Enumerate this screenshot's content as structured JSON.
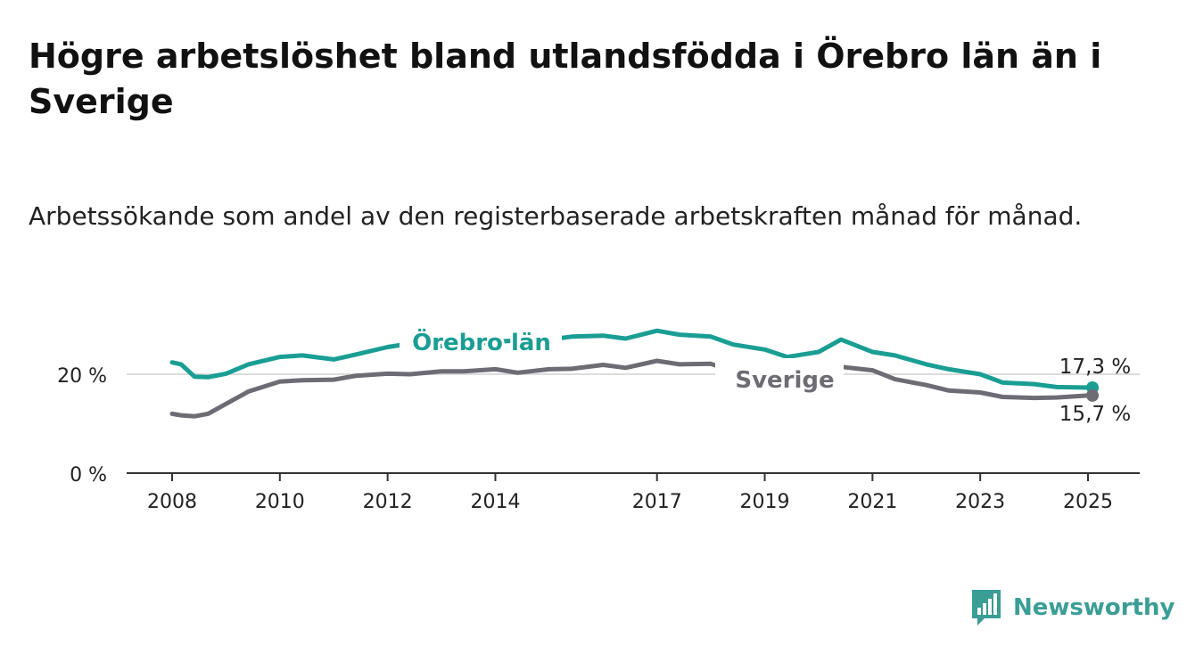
{
  "chart_data": {
    "type": "line",
    "title": "Högre arbetslöshet bland utlandsfödda i Örebro län än i Sverige",
    "subtitle": "Arbetssökande som andel av den registerbaserade arbetskraften månad för månad.",
    "xlabel": "",
    "ylabel": "",
    "x_ticks": [
      "2008",
      "2010",
      "2012",
      "2014",
      "2017",
      "2019",
      "2021",
      "2023",
      "2025"
    ],
    "y_ticks": [
      "0 %",
      "20 %"
    ],
    "y_tick_values": [
      0,
      20
    ],
    "ylim": [
      0,
      31
    ],
    "grid": "horizontal",
    "x": [
      "2008-01",
      "2008-03",
      "2008-06",
      "2008-09",
      "2009-01",
      "2009-06",
      "2010-01",
      "2010-06",
      "2011-01",
      "2011-06",
      "2012-01",
      "2012-06",
      "2013-01",
      "2013-06",
      "2014-01",
      "2014-06",
      "2015-01",
      "2015-06",
      "2016-01",
      "2016-06",
      "2017-01",
      "2017-06",
      "2018-01",
      "2018-06",
      "2019-01",
      "2019-06",
      "2020-01",
      "2020-06",
      "2021-01",
      "2021-06",
      "2022-01",
      "2022-06",
      "2023-01",
      "2023-06",
      "2024-01",
      "2024-06",
      "2025-01",
      "2025-02"
    ],
    "series": [
      {
        "name": "Örebro län",
        "color": "#1a9e94",
        "values": [
          22.4,
          22.0,
          19.5,
          19.4,
          20.1,
          22.0,
          23.5,
          23.8,
          23.0,
          24.0,
          25.5,
          26.2,
          25.7,
          26.0,
          26.6,
          26.8,
          27.0,
          27.6,
          27.8,
          27.2,
          28.8,
          28.0,
          27.6,
          26.0,
          25.0,
          23.5,
          24.5,
          27.0,
          24.5,
          23.8,
          22.0,
          21.0,
          20.0,
          18.3,
          18.0,
          17.4,
          17.3,
          17.3
        ],
        "last_value": "17,3 %"
      },
      {
        "name": "Sverige",
        "color": "#6d6c75",
        "values": [
          12.0,
          11.7,
          11.5,
          12.0,
          14.0,
          16.5,
          18.5,
          18.8,
          18.9,
          19.7,
          20.1,
          20.0,
          20.6,
          20.6,
          21.0,
          20.3,
          21.0,
          21.1,
          21.9,
          21.3,
          22.7,
          22.0,
          22.1,
          20.5,
          19.5,
          19.7,
          20.4,
          21.5,
          20.8,
          19.0,
          17.8,
          16.7,
          16.3,
          15.4,
          15.2,
          15.3,
          15.7,
          15.7
        ],
        "last_value": "15,7 %"
      }
    ]
  },
  "brand": {
    "name": "Newsworthy",
    "color": "#3a9e96"
  }
}
